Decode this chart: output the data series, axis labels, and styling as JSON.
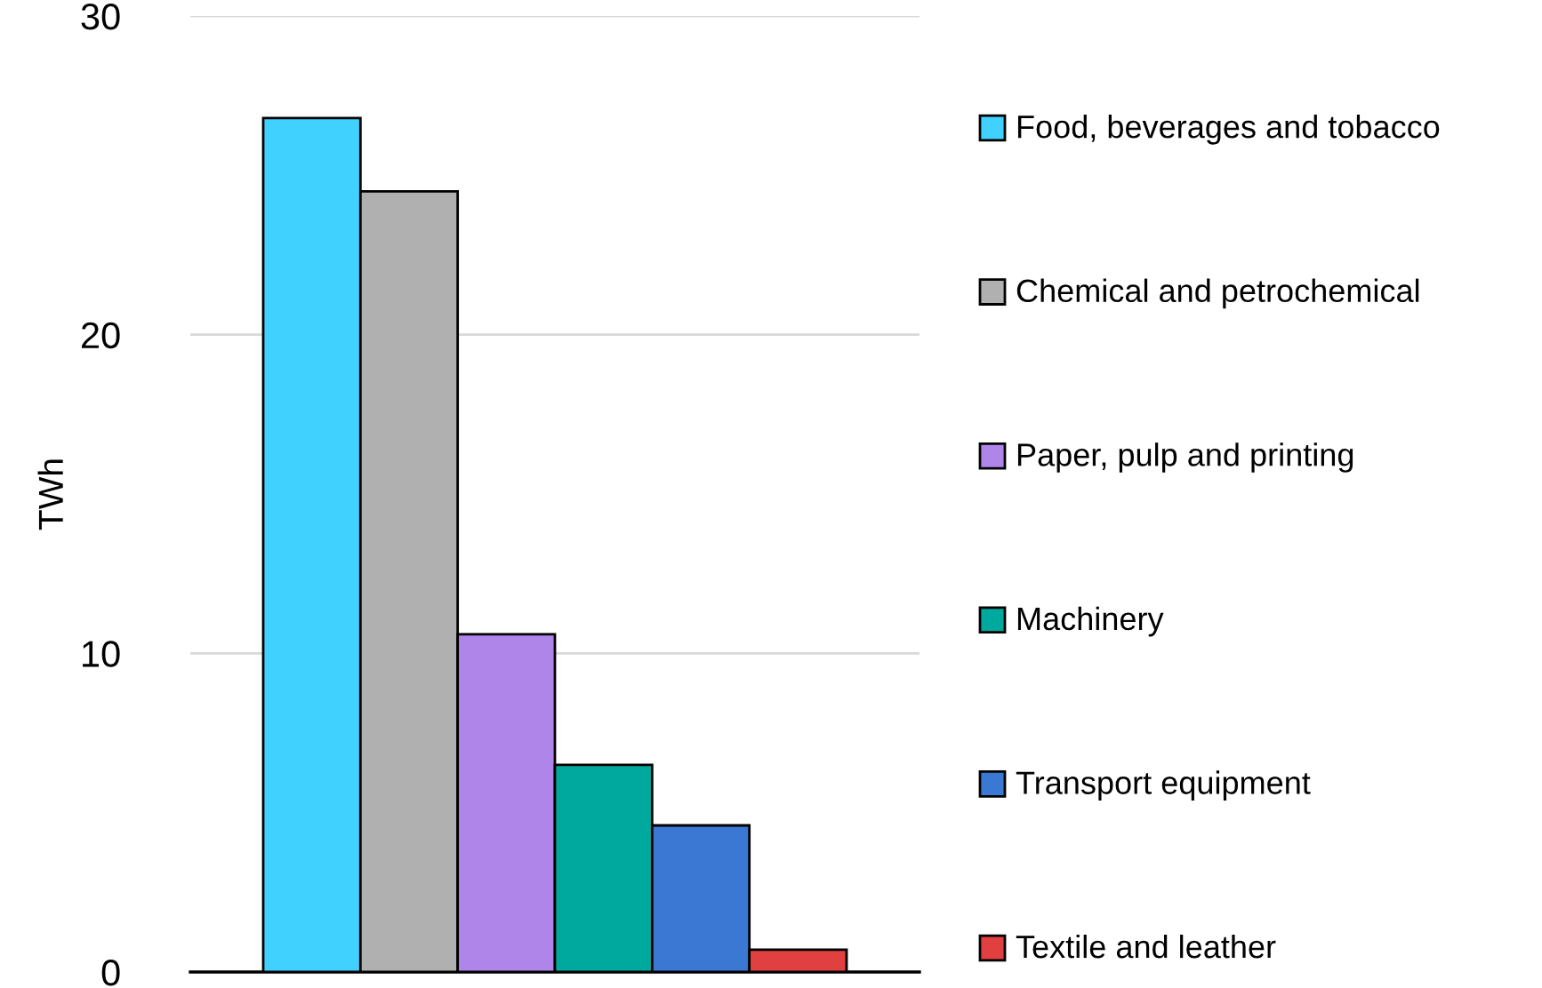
{
  "chart_data": {
    "type": "bar",
    "ylabel": "TWh",
    "categories": [
      null
    ],
    "ylim": [
      0,
      30
    ],
    "yticks": [
      0,
      10,
      20,
      30
    ],
    "grid": "y",
    "legend": "right",
    "series": [
      {
        "name": "Food, beverages and tobacco",
        "color": "#41d1ff",
        "values": [
          26.8
        ]
      },
      {
        "name": "Chemical and petrochemical",
        "color": "#b0b0b0",
        "values": [
          24.5
        ]
      },
      {
        "name": "Paper, pulp and printing",
        "color": "#b085ea",
        "values": [
          10.6
        ]
      },
      {
        "name": "Machinery",
        "color": "#00a99d",
        "values": [
          6.5
        ]
      },
      {
        "name": "Transport equipment",
        "color": "#3b78d4",
        "values": [
          4.6
        ]
      },
      {
        "name": "Textile and leather",
        "color": "#e0403f",
        "values": [
          0.7
        ]
      }
    ]
  }
}
